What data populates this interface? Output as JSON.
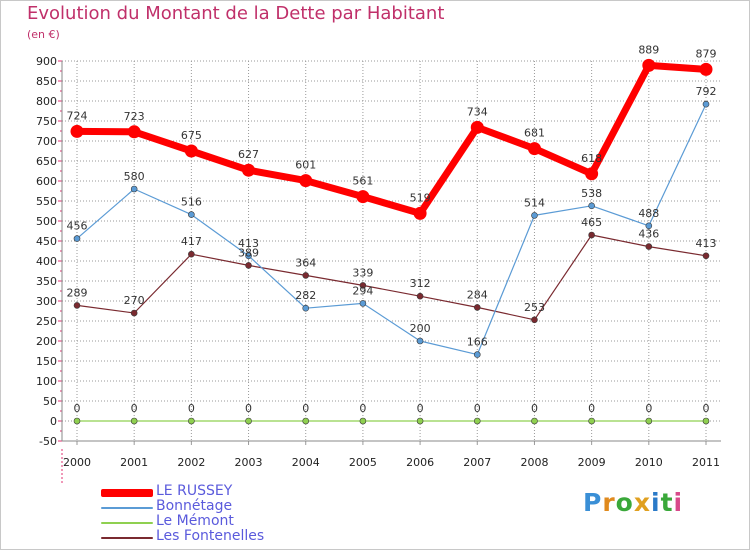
{
  "title": "Evolution du Montant de la Dette par Habitant",
  "unit": "(en €)",
  "colors": {
    "title": "#c0306a",
    "legend_text": "#5a5adc",
    "grid": "#9a9a9a",
    "axis_ticks": "#e03070"
  },
  "chart_data": {
    "type": "line",
    "x": [
      "2000",
      "2001",
      "2002",
      "2003",
      "2004",
      "2005",
      "2006",
      "2007",
      "2008",
      "2009",
      "2010",
      "2011"
    ],
    "y_ticks": [
      "-50",
      "0",
      "50",
      "100",
      "150",
      "200",
      "250",
      "300",
      "350",
      "400",
      "450",
      "500",
      "550",
      "600",
      "650",
      "700",
      "750",
      "800",
      "850",
      "900"
    ],
    "ylim": [
      -50,
      900
    ],
    "grid": true,
    "legend_position": "bottom-left",
    "series": [
      {
        "name": "LE RUSSEY",
        "color": "#ff0000",
        "thick": true,
        "values": [
          724,
          723,
          675,
          627,
          601,
          561,
          519,
          734,
          681,
          618,
          889,
          879
        ],
        "labels": [
          "724",
          "723",
          "675",
          "627",
          "601",
          "561",
          "519",
          "734",
          "681",
          "618",
          "889",
          "879"
        ]
      },
      {
        "name": "Bonnétage",
        "color": "#5b9bd5",
        "values": [
          456,
          580,
          516,
          413,
          282,
          294,
          200,
          166,
          514,
          538,
          488,
          792
        ],
        "labels": [
          "456",
          "580",
          "516",
          "413",
          "282",
          "294",
          "200",
          "166",
          "514",
          "538",
          "488",
          "792"
        ]
      },
      {
        "name": "Le Mémont",
        "color": "#8fd050",
        "values": [
          0,
          0,
          0,
          0,
          0,
          0,
          0,
          0,
          0,
          0,
          0,
          0
        ],
        "labels": [
          "0",
          "0",
          "0",
          "0",
          "0",
          "0",
          "0",
          "0",
          "0",
          "0",
          "0",
          "0"
        ]
      },
      {
        "name": "Les Fontenelles",
        "color": "#7a2a30",
        "values": [
          289,
          270,
          417,
          389,
          364,
          339,
          312,
          284,
          253,
          465,
          436,
          413
        ],
        "labels": [
          "289",
          "270",
          "417",
          "389",
          "364",
          "339",
          "312",
          "284",
          "253",
          "465",
          "436",
          "413"
        ]
      }
    ]
  },
  "logo": {
    "letters": [
      "P",
      "r",
      "o",
      "x",
      "i",
      "t",
      "i"
    ],
    "colors": [
      "#3a8fd6",
      "#e08a1e",
      "#3aa83a",
      "#e0a020",
      "#2a7ac8",
      "#3aa83a",
      "#d84a8a"
    ]
  }
}
